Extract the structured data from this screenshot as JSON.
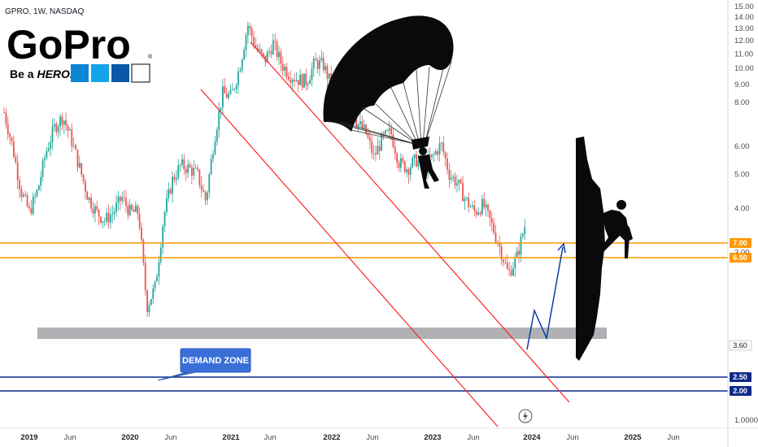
{
  "header": {
    "ticker": "GPRO, 1W, NASDAQ"
  },
  "logo": {
    "brand": "GoPro",
    "tagline_a": "Be a ",
    "tagline_b": "HERO.",
    "registered": "®",
    "squares": [
      "#0a86d4",
      "#14a4e8",
      "#0b58a8",
      "#ffffff"
    ]
  },
  "annotation": {
    "demand_zone": "DEMAND ZONE"
  },
  "colors": {
    "up_candle": "#26a69a",
    "down_candle": "#ef5350",
    "channel": "#ff2222",
    "resistance": "#ff9800",
    "support": "#0d2a8a",
    "zone": "#a9a9ad",
    "projection": "#0d3ea8"
  },
  "chart_data": {
    "type": "line",
    "title": "",
    "ticker": "GPRO",
    "interval": "1W",
    "exchange": "NASDAQ",
    "y_scale": "log",
    "ylim": [
      1.0,
      15.0
    ],
    "y_ticks": [
      {
        "value": 15.0,
        "label": "15.00"
      },
      {
        "value": 14.0,
        "label": "14.00"
      },
      {
        "value": 13.0,
        "label": "13.00"
      },
      {
        "value": 12.0,
        "label": "12.00"
      },
      {
        "value": 11.0,
        "label": "11.00"
      },
      {
        "value": 10.0,
        "label": "10.00"
      },
      {
        "value": 9.0,
        "label": "9.00"
      },
      {
        "value": 8.0,
        "label": "8.00"
      },
      {
        "value": 6.0,
        "label": "6.00"
      },
      {
        "value": 5.0,
        "label": "5.00"
      },
      {
        "value": 4.0,
        "label": "4.00"
      },
      {
        "value": 3.0,
        "label": "3.00"
      },
      {
        "value": 1.0,
        "label": "1.0000"
      }
    ],
    "x_ticks": [
      {
        "label": "2019",
        "year": true
      },
      {
        "label": "Jun",
        "year": false
      },
      {
        "label": "2020",
        "year": true
      },
      {
        "label": "Jun",
        "year": false
      },
      {
        "label": "2021",
        "year": true
      },
      {
        "label": "Jun",
        "year": false
      },
      {
        "label": "2022",
        "year": true
      },
      {
        "label": "Jun",
        "year": false
      },
      {
        "label": "2023",
        "year": true
      },
      {
        "label": "Jun",
        "year": false
      },
      {
        "label": "2024",
        "year": true
      },
      {
        "label": "Jun",
        "year": false
      },
      {
        "label": "2025",
        "year": true
      },
      {
        "label": "Jun",
        "year": false
      }
    ],
    "levels": [
      {
        "name": "resistance",
        "value": 7.0,
        "label": "7.00"
      },
      {
        "name": "resistance",
        "value": 6.5,
        "label": "6.50"
      },
      {
        "name": "support",
        "value": 2.5,
        "label": "2.50"
      },
      {
        "name": "support",
        "value": 2.0,
        "label": "2.00"
      }
    ],
    "current_price": {
      "value": 3.6,
      "label": "3.60"
    },
    "demand_zone": {
      "low": 3.6,
      "high": 4.1
    },
    "price_path": [
      [
        "2018-10",
        7.5
      ],
      [
        "2018-11",
        6.0
      ],
      [
        "2018-12",
        4.5
      ],
      [
        "2019-01",
        3.9
      ],
      [
        "2019-02",
        4.5
      ],
      [
        "2019-03",
        5.8
      ],
      [
        "2019-04",
        6.8
      ],
      [
        "2019-05",
        7.3
      ],
      [
        "2019-06",
        6.3
      ],
      [
        "2019-07",
        5.2
      ],
      [
        "2019-08",
        4.3
      ],
      [
        "2019-09",
        3.9
      ],
      [
        "2019-10",
        3.7
      ],
      [
        "2019-11",
        3.9
      ],
      [
        "2019-12",
        4.3
      ],
      [
        "2020-01",
        3.9
      ],
      [
        "2020-02",
        3.9
      ],
      [
        "2020-03",
        2.1
      ],
      [
        "2020-04",
        2.4
      ],
      [
        "2020-05",
        3.8
      ],
      [
        "2020-06",
        4.8
      ],
      [
        "2020-07",
        5.3
      ],
      [
        "2020-08",
        5.2
      ],
      [
        "2020-09",
        5.0
      ],
      [
        "2020-10",
        4.2
      ],
      [
        "2020-11",
        6.3
      ],
      [
        "2020-12",
        8.5
      ],
      [
        "2021-01",
        8.3
      ],
      [
        "2021-02",
        10.0
      ],
      [
        "2021-03",
        13.3
      ],
      [
        "2021-04",
        11.4
      ],
      [
        "2021-05",
        10.5
      ],
      [
        "2021-06",
        11.8
      ],
      [
        "2021-07",
        10.3
      ],
      [
        "2021-08",
        9.6
      ],
      [
        "2021-09",
        9.3
      ],
      [
        "2021-10",
        9.2
      ],
      [
        "2021-11",
        10.4
      ],
      [
        "2021-12",
        10.2
      ],
      [
        "2022-01",
        8.9
      ],
      [
        "2022-02",
        8.3
      ],
      [
        "2022-03",
        8.6
      ],
      [
        "2022-04",
        7.0
      ],
      [
        "2022-05",
        6.6
      ],
      [
        "2022-06",
        5.6
      ],
      [
        "2022-07",
        6.3
      ],
      [
        "2022-08",
        6.6
      ],
      [
        "2022-09",
        5.4
      ],
      [
        "2022-10",
        5.2
      ],
      [
        "2022-11",
        5.5
      ],
      [
        "2022-12",
        5.3
      ],
      [
        "2023-01",
        5.6
      ],
      [
        "2023-02",
        6.1
      ],
      [
        "2023-03",
        5.0
      ],
      [
        "2023-04",
        4.7
      ],
      [
        "2023-05",
        4.2
      ],
      [
        "2023-06",
        3.9
      ],
      [
        "2023-07",
        4.1
      ],
      [
        "2023-08",
        3.6
      ],
      [
        "2023-09",
        3.1
      ],
      [
        "2023-10",
        2.6
      ],
      [
        "2023-11",
        2.9
      ],
      [
        "2023-12",
        3.6
      ]
    ],
    "projection_path": [
      [
        "2023-12",
        3.6
      ],
      [
        "2024-01",
        4.8
      ],
      [
        "2024-02",
        3.9
      ],
      [
        "2024-03",
        6.9
      ]
    ],
    "channel": {
      "upper": [
        [
          "2021-02",
          13.8
        ],
        [
          "2024-01",
          2.6
        ]
      ],
      "lower": [
        [
          "2019-11",
          12.0
        ],
        [
          "2023-02",
          1.0
        ]
      ]
    }
  }
}
